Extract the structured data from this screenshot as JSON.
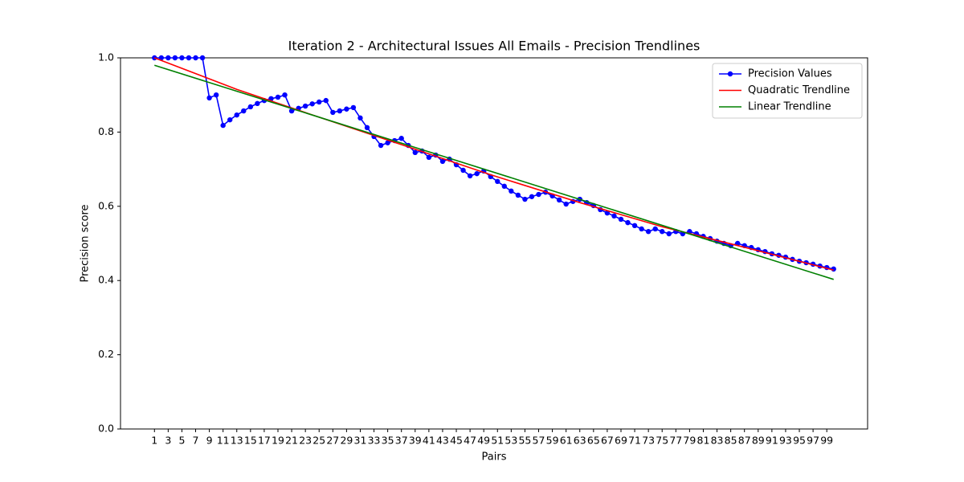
{
  "chart_data": {
    "type": "line",
    "title": "Iteration 2 - Architectural Issues All Emails - Precision Trendlines",
    "xlabel": "Pairs",
    "ylabel": "Precision score",
    "xlim": [
      -3.95,
      104.95
    ],
    "ylim": [
      0,
      1
    ],
    "xticks": [
      1,
      3,
      5,
      7,
      9,
      11,
      13,
      15,
      17,
      19,
      21,
      23,
      25,
      27,
      29,
      31,
      33,
      35,
      37,
      39,
      41,
      43,
      45,
      47,
      49,
      51,
      53,
      55,
      57,
      59,
      61,
      63,
      65,
      67,
      69,
      71,
      73,
      75,
      77,
      79,
      81,
      83,
      85,
      87,
      89,
      91,
      93,
      95,
      97,
      99
    ],
    "yticks": [
      {
        "value": 0,
        "label": "0.0"
      },
      0.2,
      0.4,
      0.6,
      0.8,
      {
        "value": 1,
        "label": "1.0"
      }
    ],
    "grid": false,
    "legend": "upper right",
    "series": [
      {
        "name": "Precision Values",
        "color": "#0000ff",
        "marker": true,
        "x": [
          1,
          2,
          3,
          4,
          5,
          6,
          7,
          8,
          9,
          10,
          11,
          12,
          13,
          14,
          15,
          16,
          17,
          18,
          19,
          20,
          21,
          22,
          23,
          24,
          25,
          26,
          27,
          28,
          29,
          30,
          31,
          32,
          33,
          34,
          35,
          36,
          37,
          38,
          39,
          40,
          41,
          42,
          43,
          44,
          45,
          46,
          47,
          48,
          49,
          50,
          51,
          52,
          53,
          54,
          55,
          56,
          57,
          58,
          59,
          60,
          61,
          62,
          63,
          64,
          65,
          66,
          67,
          68,
          69,
          70,
          71,
          72,
          73,
          74,
          75,
          76,
          77,
          78,
          79,
          80,
          81,
          82,
          83,
          84,
          85,
          86,
          87,
          88,
          89,
          90,
          91,
          92,
          93,
          94,
          95,
          96,
          97,
          98,
          99,
          100
        ],
        "values": [
          1.0,
          1.0,
          1.0,
          1.0,
          1.0,
          1.0,
          1.0,
          1.0,
          0.892,
          0.9,
          0.818,
          0.833,
          0.846,
          0.857,
          0.868,
          0.877,
          0.885,
          0.89,
          0.894,
          0.9,
          0.857,
          0.864,
          0.87,
          0.876,
          0.881,
          0.885,
          0.853,
          0.857,
          0.862,
          0.866,
          0.838,
          0.812,
          0.788,
          0.764,
          0.771,
          0.777,
          0.783,
          0.764,
          0.745,
          0.749,
          0.732,
          0.738,
          0.721,
          0.727,
          0.712,
          0.697,
          0.682,
          0.688,
          0.695,
          0.68,
          0.667,
          0.654,
          0.641,
          0.63,
          0.619,
          0.626,
          0.632,
          0.638,
          0.628,
          0.617,
          0.606,
          0.613,
          0.619,
          0.61,
          0.602,
          0.591,
          0.582,
          0.574,
          0.565,
          0.556,
          0.548,
          0.539,
          0.532,
          0.539,
          0.532,
          0.526,
          0.532,
          0.526,
          0.532,
          0.526,
          0.519,
          0.513,
          0.506,
          0.5,
          0.494,
          0.5,
          0.494,
          0.489,
          0.483,
          0.478,
          0.472,
          0.468,
          0.463,
          0.457,
          0.452,
          0.448,
          0.444,
          0.439,
          0.435,
          0.431
        ]
      },
      {
        "name": "Quadratic Trendline",
        "color": "#ff0000",
        "marker": false,
        "x": [
          1,
          13,
          25,
          38,
          50,
          63,
          75,
          88,
          100
        ],
        "values": [
          1.0,
          0.915,
          0.84,
          0.76,
          0.685,
          0.61,
          0.545,
          0.485,
          0.428
        ]
      },
      {
        "name": "Linear Trendline",
        "color": "#008000",
        "marker": false,
        "x": [
          1,
          100
        ],
        "values": [
          0.98,
          0.403
        ]
      }
    ]
  }
}
